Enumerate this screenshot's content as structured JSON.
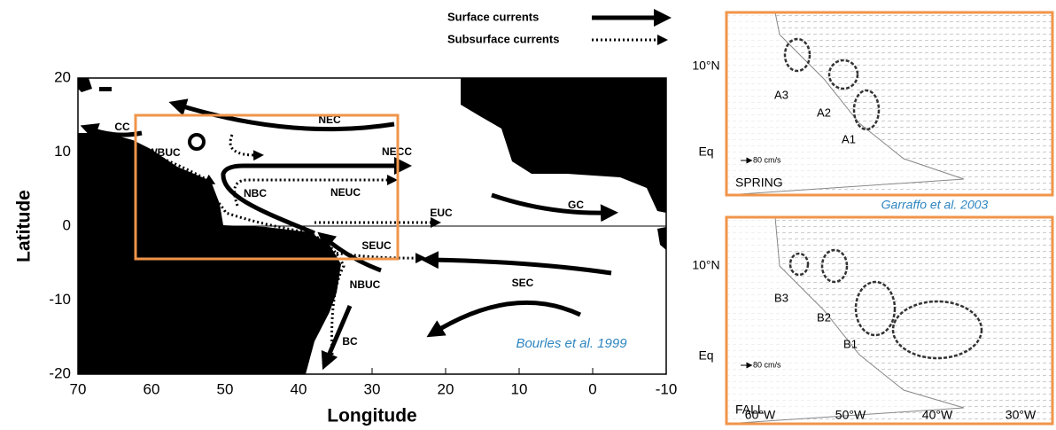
{
  "legend": {
    "surface": "Surface currents",
    "subsurface": "Subsurface currents"
  },
  "map": {
    "y_label": "Latitude",
    "x_label": "Longitude",
    "yticks": [
      20,
      10,
      0,
      -10,
      -20
    ],
    "xticks": [
      70,
      60,
      50,
      40,
      30,
      20,
      10,
      0,
      -10
    ],
    "currents": [
      "CC",
      "WBUC",
      "NEC",
      "NECC",
      "NBC",
      "NEUC",
      "EUC",
      "GC",
      "SEUC",
      "NBUC",
      "SEC",
      "BC"
    ],
    "citation": "Bourles et al. 1999"
  },
  "panels": [
    {
      "lat_labels": [
        "10°N",
        "Eq"
      ],
      "eddies": [
        "A3",
        "A2",
        "A1"
      ],
      "scale": "80 cm/s",
      "season": "SPRING"
    },
    {
      "lat_labels": [
        "10°N",
        "Eq"
      ],
      "eddies": [
        "B3",
        "B2",
        "B1"
      ],
      "scale": "80 cm/s",
      "season": "FALL"
    }
  ],
  "panel_citation": "Garraffo et al. 2003",
  "panel_xticks": [
    "60°W",
    "50°W",
    "40°W",
    "30°W"
  ]
}
